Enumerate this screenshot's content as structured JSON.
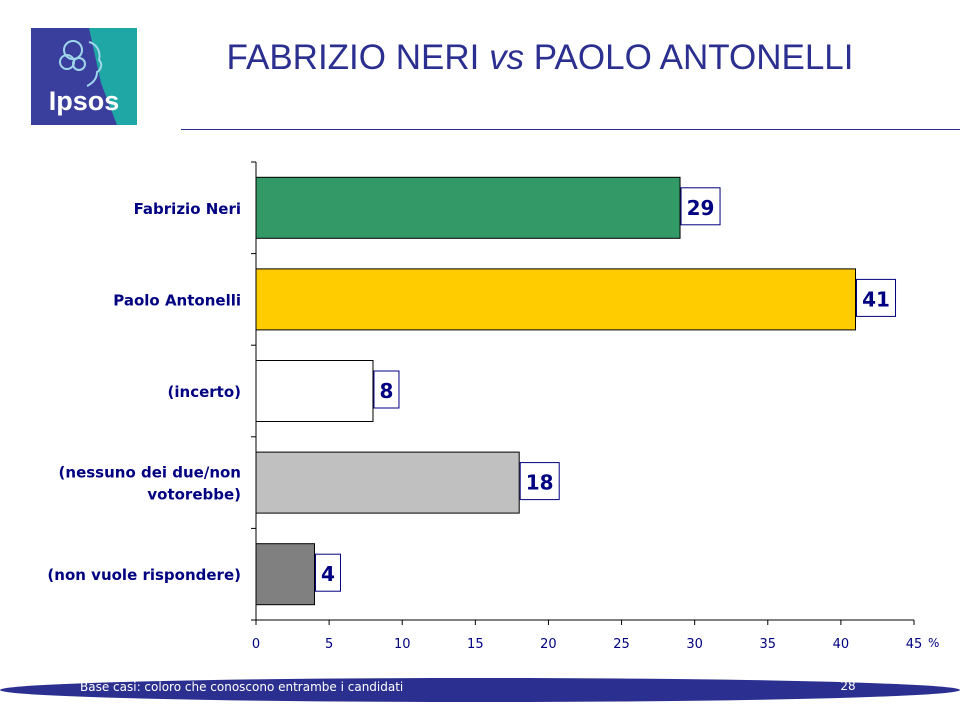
{
  "logo": {
    "text": "Ipsos",
    "colors": {
      "blue": "#3a3f9d",
      "teal": "#1fa7a6"
    }
  },
  "title": {
    "main": "FABRIZIO NERI ",
    "vs": "vs",
    "rest": " PAOLO ANTONELLI"
  },
  "chart_data": {
    "type": "bar",
    "orientation": "horizontal",
    "categories": [
      [
        "Fabrizio Neri"
      ],
      [
        "Paolo Antonelli"
      ],
      [
        "(incerto)"
      ],
      [
        "(nessuno dei due/non",
        "votorebbe)"
      ],
      [
        "(non vuole rispondere)"
      ]
    ],
    "values": [
      29,
      41,
      8,
      18,
      4
    ],
    "colors": [
      "#339966",
      "#ffcc00",
      "#ffffff",
      "#c0c0c0",
      "#808080"
    ],
    "xlim": [
      0,
      45
    ],
    "xticks": [
      0,
      5,
      10,
      15,
      20,
      25,
      30,
      35,
      40,
      45
    ],
    "unit": "%",
    "grid": false,
    "data_labels": true
  },
  "footer": {
    "note": "Base casi: coloro che conoscono entrambe i candidati",
    "page": "28",
    "color": "#2b2f8f"
  }
}
